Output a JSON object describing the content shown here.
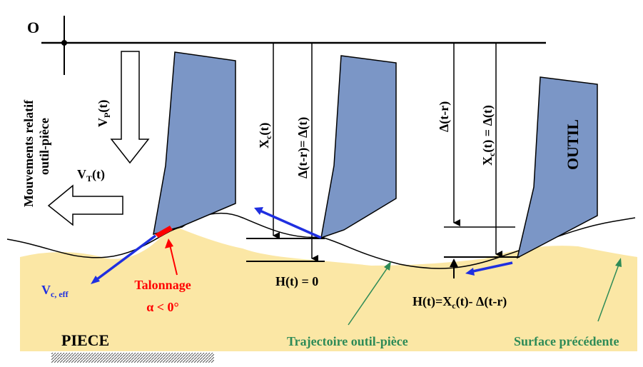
{
  "labels": {
    "origin": "O",
    "relative_motions_line1": "Mouvements relatif",
    "relative_motions_line2": "outil-pièce",
    "vp": "V",
    "vp_sub": "P",
    "vp_tail": "(t)",
    "vt": "V",
    "vt_sub": "T",
    "vt_tail": "(t)",
    "xc": "X",
    "xc_sub": "c",
    "xc_tail": "(t)",
    "delta_eq": "Δ(t-r)= Δ(t)",
    "delta_tr": "Δ(t-r)",
    "xc_eq": "X",
    "xc_eq_sub": "c",
    "xc_eq_tail": "(t) = Δ(t)",
    "outil": "OUTIL",
    "vc_eff": "V",
    "vc_eff_sub": "c, eff",
    "talonnage": "Talonnage",
    "alpha": "α < 0°",
    "h_zero": "H(t) = 0",
    "h_formula": "H(t)=X",
    "h_formula_sub": "c",
    "h_formula_tail": "(t)- Δ(t-r)",
    "piece": "PIECE",
    "trajectoire": "Trajectoire outil-pièce",
    "surface": "Surface précédente"
  },
  "colors": {
    "tool": "#7b96c6",
    "piece": "#fbe7a5",
    "vc": "#1f2fe0",
    "red": "#ff0000",
    "green": "#2e8b57",
    "black": "#000000"
  }
}
